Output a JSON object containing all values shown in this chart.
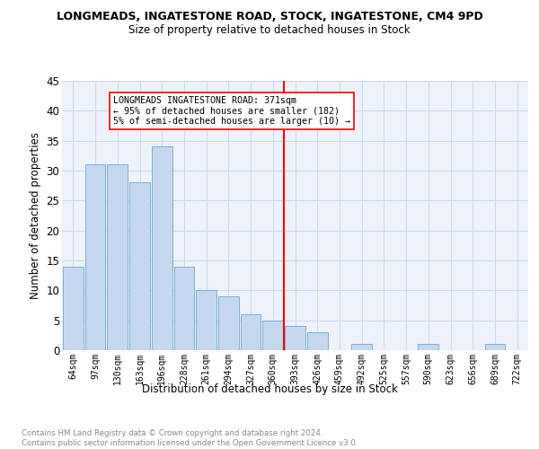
{
  "title": "LONGMEADS, INGATESTONE ROAD, STOCK, INGATESTONE, CM4 9PD",
  "subtitle": "Size of property relative to detached houses in Stock",
  "xlabel": "Distribution of detached houses by size in Stock",
  "ylabel": "Number of detached properties",
  "categories": [
    "64sqm",
    "97sqm",
    "130sqm",
    "163sqm",
    "196sqm",
    "228sqm",
    "261sqm",
    "294sqm",
    "327sqm",
    "360sqm",
    "393sqm",
    "426sqm",
    "459sqm",
    "492sqm",
    "525sqm",
    "557sqm",
    "590sqm",
    "623sqm",
    "656sqm",
    "689sqm",
    "722sqm"
  ],
  "values": [
    14,
    31,
    31,
    28,
    34,
    14,
    10,
    9,
    6,
    5,
    4,
    3,
    0,
    1,
    0,
    0,
    1,
    0,
    0,
    1,
    0
  ],
  "bar_color": "#c5d8f0",
  "bar_edge_color": "#7bafd4",
  "grid_color": "#d0d9ea",
  "background_color": "#eef2fb",
  "vline_x": 9.5,
  "annotation_line1": "LONGMEADS INGATESTONE ROAD: 371sqm",
  "annotation_line2": "← 95% of detached houses are smaller (182)",
  "annotation_line3": "5% of semi-detached houses are larger (10) →",
  "footer": "Contains HM Land Registry data © Crown copyright and database right 2024.\nContains public sector information licensed under the Open Government Licence v3.0.",
  "ylim": [
    0,
    45
  ],
  "yticks": [
    0,
    5,
    10,
    15,
    20,
    25,
    30,
    35,
    40,
    45
  ]
}
